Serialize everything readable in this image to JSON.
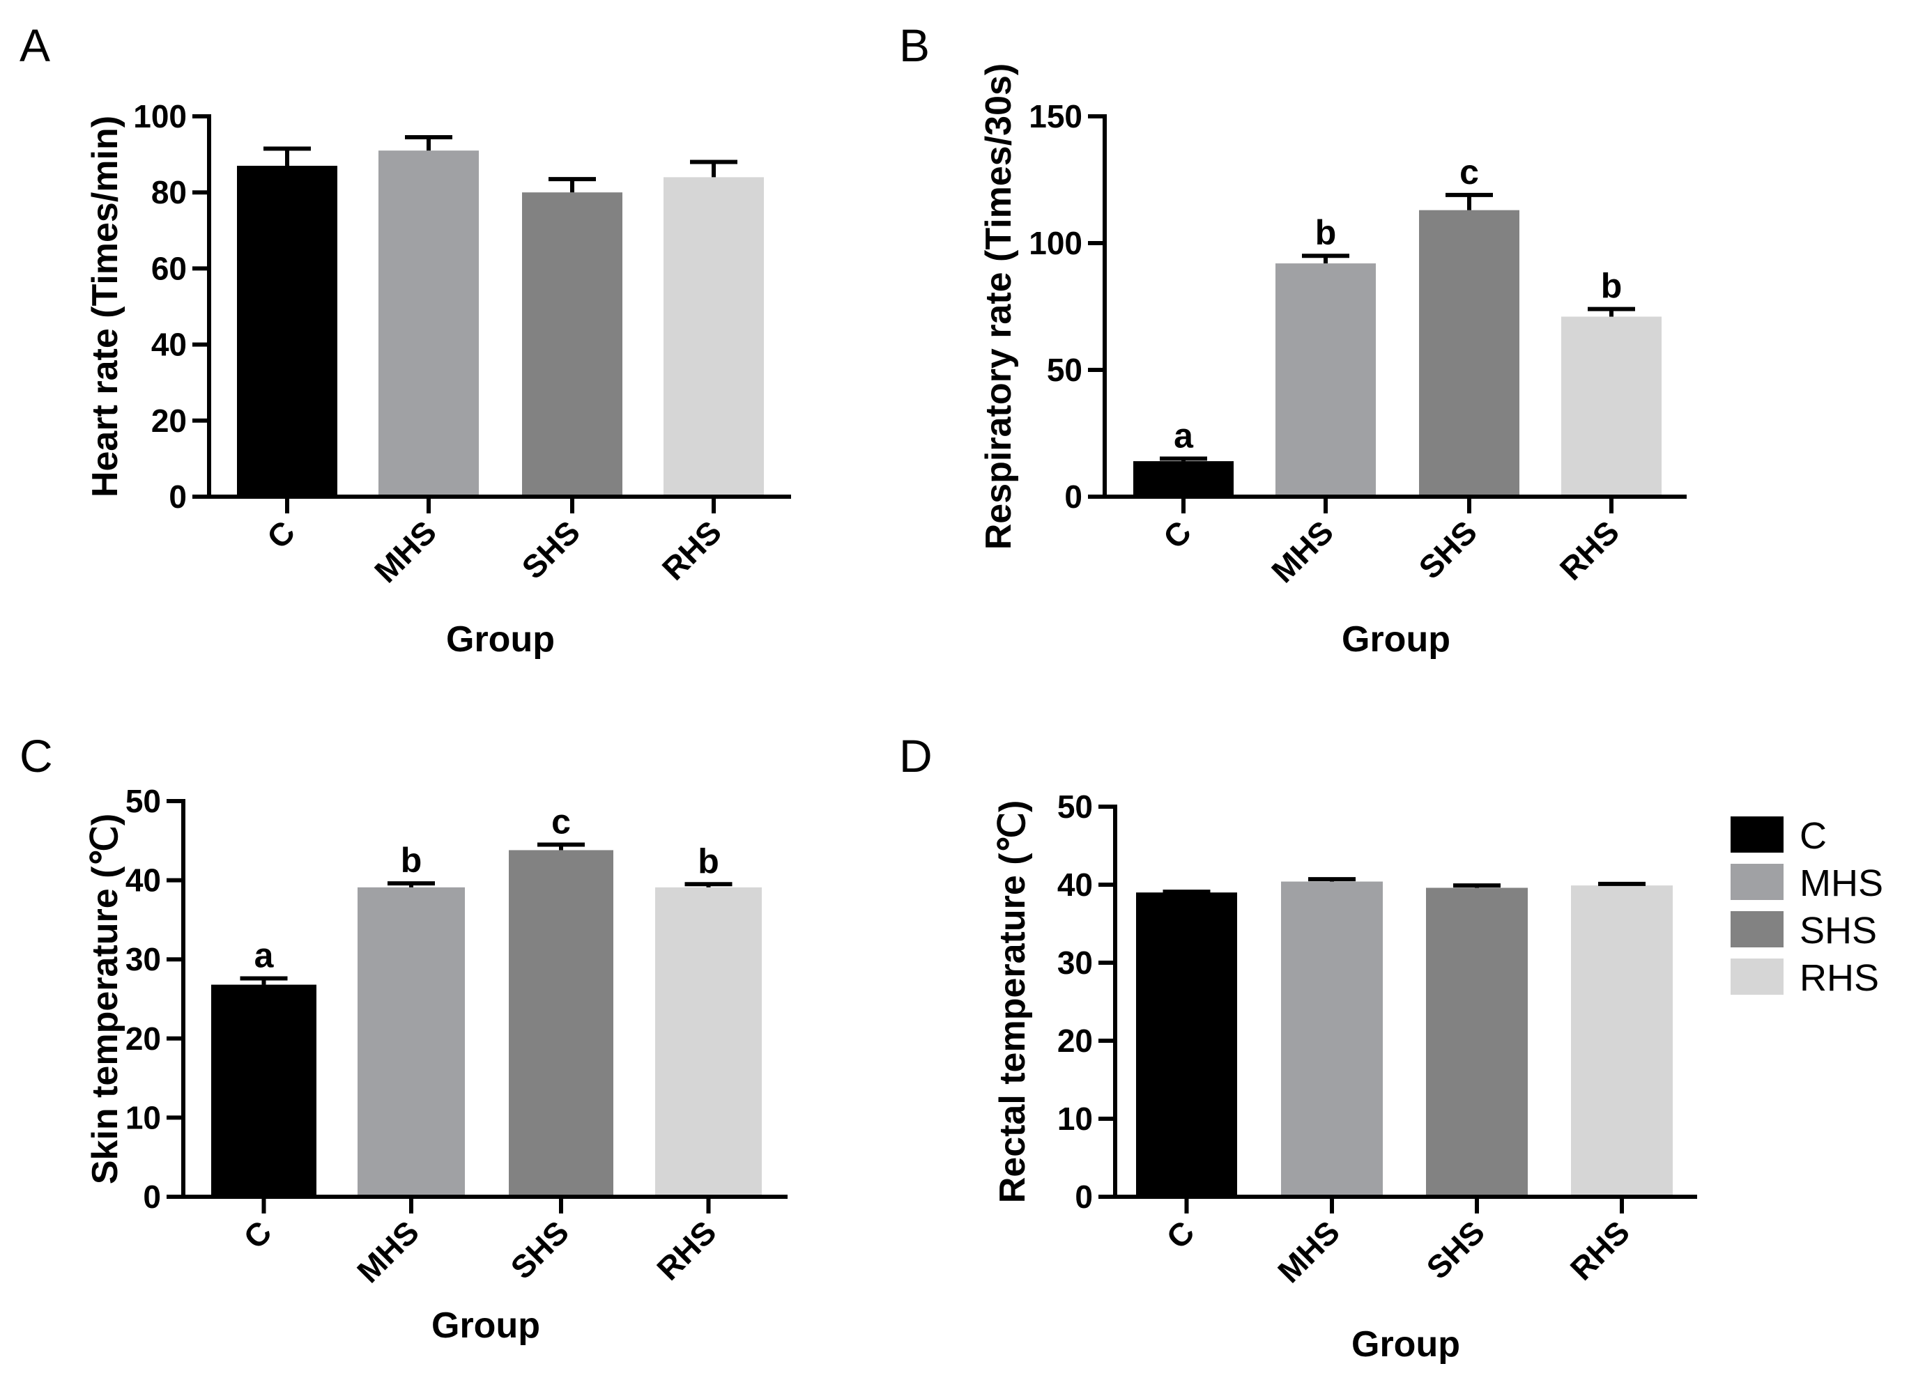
{
  "colors": {
    "C": "#000000",
    "MHS": "#a0a1a4",
    "SHS": "#828282",
    "RHS": "#d6d6d6"
  },
  "legend": {
    "placement": "right",
    "entries": [
      "C",
      "MHS",
      "SHS",
      "RHS"
    ]
  },
  "chart_data": [
    {
      "panel": "A",
      "type": "bar",
      "categories": [
        "C",
        "MHS",
        "SHS",
        "RHS"
      ],
      "values": [
        87,
        91,
        80,
        84
      ],
      "errors": [
        4.5,
        3.5,
        3.5,
        4
      ],
      "sig_labels": [
        "",
        "",
        "",
        ""
      ],
      "xlabel": "Group",
      "ylabel": "Heart rate (Times/min)",
      "ylim": [
        0,
        100
      ],
      "yticks": [
        0,
        20,
        40,
        60,
        80,
        100
      ],
      "grid": false
    },
    {
      "panel": "B",
      "type": "bar",
      "categories": [
        "C",
        "MHS",
        "SHS",
        "RHS"
      ],
      "values": [
        14,
        92,
        113,
        71
      ],
      "errors": [
        1,
        3,
        6,
        3
      ],
      "sig_labels": [
        "a",
        "b",
        "c",
        "b"
      ],
      "xlabel": "Group",
      "ylabel": "Respiratory rate (Times/30s)",
      "ylim": [
        0,
        150
      ],
      "yticks": [
        0,
        50,
        100,
        150
      ],
      "grid": false
    },
    {
      "panel": "C",
      "type": "bar",
      "categories": [
        "C",
        "MHS",
        "SHS",
        "RHS"
      ],
      "values": [
        26.8,
        39.1,
        43.8,
        39.1
      ],
      "errors": [
        0.8,
        0.5,
        0.7,
        0.4
      ],
      "sig_labels": [
        "a",
        "b",
        "c",
        "b"
      ],
      "xlabel": "Group",
      "ylabel": "Skin temperature (℃)",
      "ylim": [
        0,
        50
      ],
      "yticks": [
        0,
        10,
        20,
        30,
        40,
        50
      ],
      "grid": false
    },
    {
      "panel": "D",
      "type": "bar",
      "categories": [
        "C",
        "MHS",
        "SHS",
        "RHS"
      ],
      "values": [
        39,
        40.4,
        39.6,
        39.9
      ],
      "errors": [
        0.1,
        0.3,
        0.3,
        0.2
      ],
      "sig_labels": [
        "",
        "",
        "",
        ""
      ],
      "xlabel": "Group",
      "ylabel": "Rectal temperature (℃)",
      "ylim": [
        0,
        50
      ],
      "yticks": [
        0,
        10,
        20,
        30,
        40,
        50
      ],
      "grid": false
    }
  ]
}
